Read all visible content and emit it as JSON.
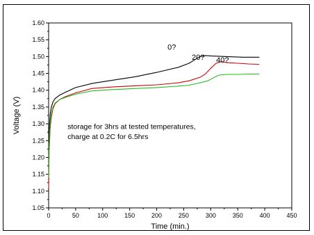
{
  "chart_data": {
    "type": "line",
    "xlabel": "Time (min.)",
    "ylabel": "Voltage (V)",
    "xlim": [
      0,
      450
    ],
    "ylim": [
      1.05,
      1.6
    ],
    "xticks": [
      0,
      50,
      100,
      150,
      200,
      250,
      300,
      350,
      400,
      450
    ],
    "yticks": [
      1.05,
      1.1,
      1.15,
      1.2,
      1.25,
      1.3,
      1.35,
      1.4,
      1.45,
      1.5,
      1.55,
      1.6
    ],
    "annotation_lines": [
      "storage for 3hrs at tested temperatures,",
      "charge at 0.2C for 6.5hrs"
    ],
    "grid": false,
    "series": [
      {
        "name": "0?",
        "color": "#000000",
        "x": [
          0,
          1,
          3,
          5,
          8,
          12,
          20,
          30,
          50,
          80,
          120,
          160,
          200,
          240,
          260,
          270,
          280,
          290,
          300,
          330,
          360,
          390
        ],
        "y": [
          1.17,
          1.28,
          1.33,
          1.35,
          1.365,
          1.375,
          1.385,
          1.393,
          1.408,
          1.42,
          1.43,
          1.44,
          1.453,
          1.468,
          1.48,
          1.49,
          1.5,
          1.503,
          1.502,
          1.5,
          1.498,
          1.498
        ]
      },
      {
        "name": "20?",
        "color": "#cc0000",
        "x": [
          0,
          1,
          3,
          5,
          8,
          12,
          20,
          30,
          50,
          80,
          120,
          160,
          200,
          240,
          260,
          280,
          290,
          300,
          310,
          320,
          330,
          350,
          370,
          390
        ],
        "y": [
          1.11,
          1.22,
          1.29,
          1.32,
          1.345,
          1.36,
          1.372,
          1.38,
          1.392,
          1.405,
          1.41,
          1.413,
          1.416,
          1.422,
          1.428,
          1.438,
          1.448,
          1.465,
          1.48,
          1.485,
          1.482,
          1.48,
          1.478,
          1.477
        ]
      },
      {
        "name": "40?",
        "color": "#22bb22",
        "x": [
          0,
          1,
          3,
          5,
          8,
          12,
          20,
          30,
          50,
          80,
          120,
          160,
          200,
          240,
          260,
          280,
          295,
          305,
          315,
          330,
          350,
          370,
          390
        ],
        "y": [
          1.14,
          1.24,
          1.3,
          1.33,
          1.35,
          1.362,
          1.372,
          1.378,
          1.388,
          1.398,
          1.402,
          1.405,
          1.408,
          1.412,
          1.415,
          1.422,
          1.428,
          1.437,
          1.445,
          1.447,
          1.447,
          1.448,
          1.448
        ]
      }
    ]
  }
}
